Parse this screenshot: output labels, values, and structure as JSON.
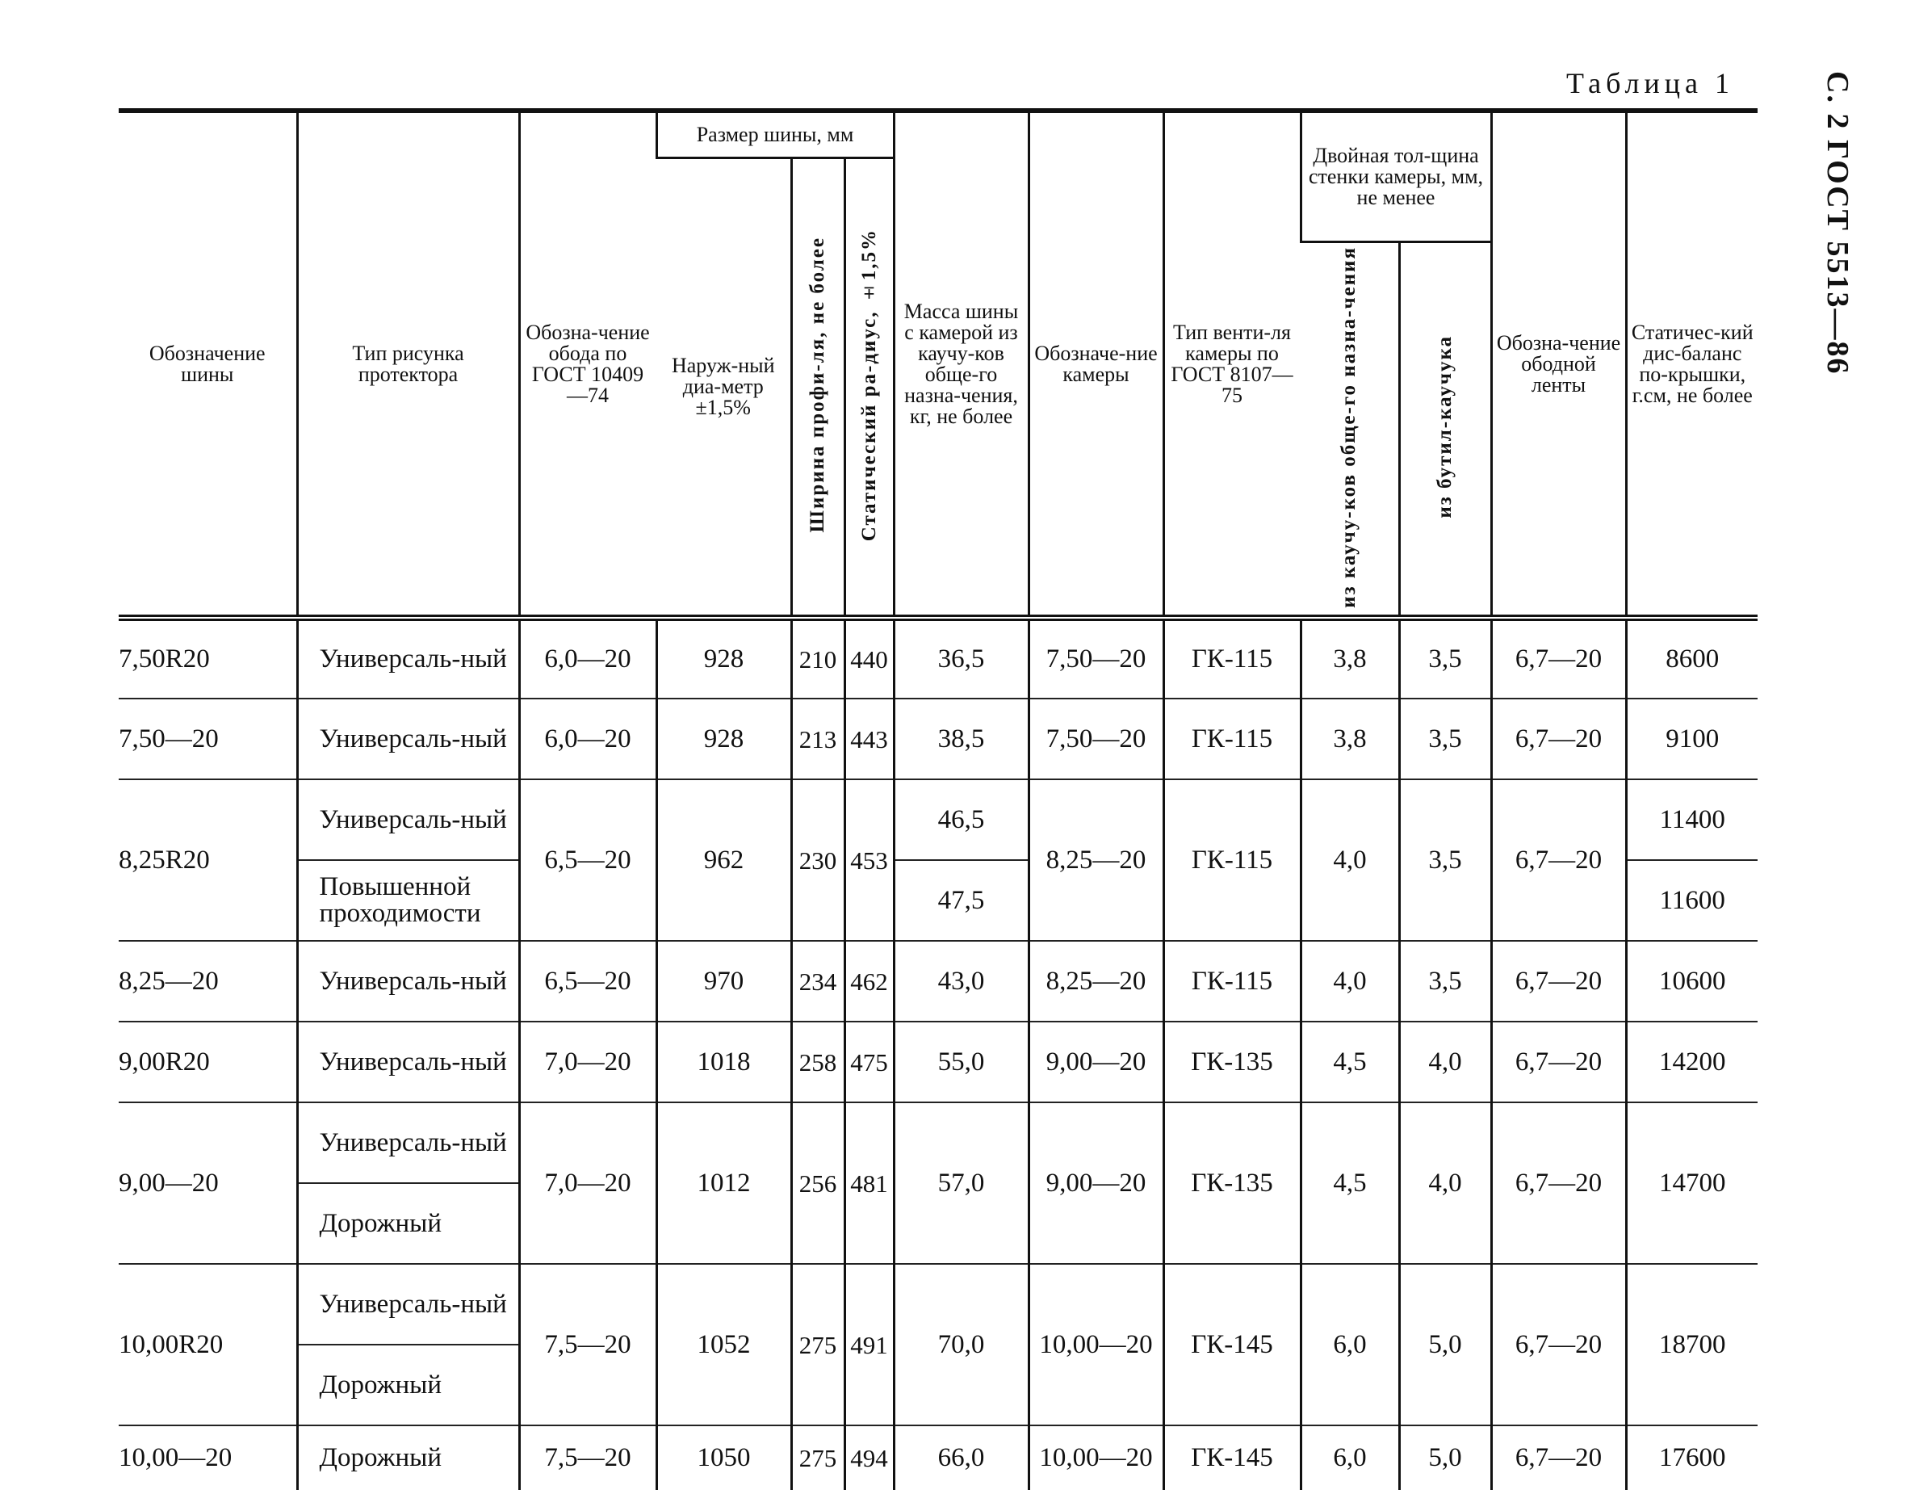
{
  "caption": "Таблица 1",
  "side_label": "С. 2 ГОСТ 5513—86",
  "headers": {
    "tire": "Обозначение шины",
    "pattern": "Тип рисунка протектора",
    "rim": "Обозна-чение обода по ГОСТ 10409—74",
    "size_group": "Размер шины, мм",
    "outer_diameter": "Наруж-ный диа-метр ±1,5%",
    "width": "Ширина профи-ля, не более",
    "radius": "Статический ра-диус, ±1,5%",
    "mass": "Масса шины с камерой из каучу-ков обще-го назна-чения, кг, не более",
    "camera": "Обозначе-ние камеры",
    "valve": "Тип венти-ля камеры по ГОСТ 8107—75",
    "wall_group": "Двойная тол-щина стенки камеры, мм, не менее",
    "wall_rubber": "из каучу-ков обще-го назна-чения",
    "wall_butyl": "из бутил-каучука",
    "tape": "Обозна-чение ободной ленты",
    "disbalance": "Статичес-кий дис-баланс по-крышки, г.см, не более"
  },
  "rows": [
    {
      "tire": "7,50R20",
      "rim": "6,0—20",
      "outer": "928",
      "width": "210",
      "radius": "440",
      "camera": "7,50—20",
      "valve": "ГК-115",
      "rubber": "3,8",
      "butyl": "3,5",
      "tape": "6,7—20",
      "subs": [
        {
          "pattern": "Универсаль-ный",
          "mass": "36,5",
          "disbalance": "8600"
        }
      ]
    },
    {
      "tire": "7,50—20",
      "rim": "6,0—20",
      "outer": "928",
      "width": "213",
      "radius": "443",
      "camera": "7,50—20",
      "valve": "ГК-115",
      "rubber": "3,8",
      "butyl": "3,5",
      "tape": "6,7—20",
      "subs": [
        {
          "pattern": "Универсаль-ный",
          "mass": "38,5",
          "disbalance": "9100"
        }
      ]
    },
    {
      "tire": "8,25R20",
      "rim": "6,5—20",
      "outer": "962",
      "width": "230",
      "radius": "453",
      "camera": "8,25—20",
      "valve": "ГК-115",
      "rubber": "4,0",
      "butyl": "3,5",
      "tape": "6,7—20",
      "subs": [
        {
          "pattern": "Универсаль-ный",
          "mass": "46,5",
          "disbalance": "11400"
        },
        {
          "pattern": "Повышенной проходимости",
          "mass": "47,5",
          "disbalance": "11600"
        }
      ]
    },
    {
      "tire": "8,25—20",
      "rim": "6,5—20",
      "outer": "970",
      "width": "234",
      "radius": "462",
      "camera": "8,25—20",
      "valve": "ГК-115",
      "rubber": "4,0",
      "butyl": "3,5",
      "tape": "6,7—20",
      "subs": [
        {
          "pattern": "Универсаль-ный",
          "mass": "43,0",
          "disbalance": "10600"
        }
      ]
    },
    {
      "tire": "9,00R20",
      "rim": "7,0—20",
      "outer": "1018",
      "width": "258",
      "radius": "475",
      "camera": "9,00—20",
      "valve": "ГК-135",
      "rubber": "4,5",
      "butyl": "4,0",
      "tape": "6,7—20",
      "subs": [
        {
          "pattern": "Универсаль-ный",
          "mass": "55,0",
          "disbalance": "14200"
        }
      ]
    },
    {
      "tire": "9,00—20",
      "rim": "7,0—20",
      "outer": "1012",
      "width": "256",
      "radius": "481",
      "mass": "57,0",
      "disbalance": "14700",
      "camera": "9,00—20",
      "valve": "ГК-135",
      "rubber": "4,5",
      "butyl": "4,0",
      "tape": "6,7—20",
      "subs": [
        {
          "pattern": "Универсаль-ный"
        },
        {
          "pattern": "Дорожный"
        }
      ]
    },
    {
      "tire": "10,00R20",
      "rim": "7,5—20",
      "outer": "1052",
      "width": "275",
      "radius": "491",
      "mass": "70,0",
      "disbalance": "18700",
      "camera": "10,00—20",
      "valve": "ГК-145",
      "rubber": "6,0",
      "butyl": "5,0",
      "tape": "6,7—20",
      "subs": [
        {
          "pattern": "Универсаль-ный"
        },
        {
          "pattern": "Дорожный"
        }
      ]
    },
    {
      "tire": "10,00—20",
      "rim": "7,5—20",
      "outer": "1050",
      "width": "275",
      "radius": "494",
      "camera": "10,00—20",
      "valve": "ГК-145",
      "rubber": "6,0",
      "butyl": "5,0",
      "tape": "6,7—20",
      "subs": [
        {
          "pattern": "Дорожный",
          "mass": "66,0",
          "disbalance": "17600"
        }
      ]
    }
  ]
}
